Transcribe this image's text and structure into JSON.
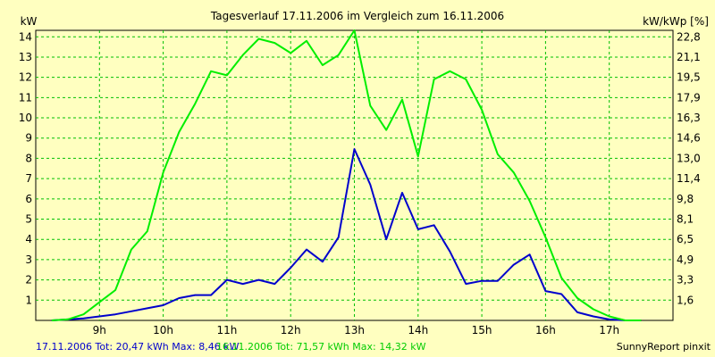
{
  "chart_data": {
    "type": "line",
    "title": "Tagesverlauf 17.11.2006 im Vergleich zum 16.11.2006",
    "ylabel_left": "kW",
    "ylabel_right": "kW/kWp [%]",
    "x_ticks": [
      "9h",
      "10h",
      "11h",
      "12h",
      "13h",
      "14h",
      "15h",
      "16h",
      "17h"
    ],
    "x_tick_values": [
      9,
      10,
      11,
      12,
      13,
      14,
      15,
      16,
      17
    ],
    "xlim": [
      8.0,
      18.0
    ],
    "ylim": [
      0,
      14.32
    ],
    "y_ticks_left": [
      "1",
      "2",
      "3",
      "4",
      "5",
      "6",
      "7",
      "8",
      "9",
      "10",
      "11",
      "12",
      "13",
      "14"
    ],
    "y_ticks_right": [
      "1,6",
      "3,3",
      "4,9",
      "6,5",
      "8,1",
      "9,8",
      "11,4",
      "13,0",
      "14,6",
      "16,3",
      "17,9",
      "19,5",
      "21,1",
      "22,8"
    ],
    "grid": true,
    "series": [
      {
        "name": "17.11.2006",
        "color": "#0000cc",
        "x": [
          8.25,
          8.5,
          8.75,
          9.0,
          9.25,
          9.5,
          9.75,
          10.0,
          10.25,
          10.5,
          10.75,
          11.0,
          11.25,
          11.5,
          11.75,
          12.0,
          12.25,
          12.5,
          12.75,
          13.0,
          13.25,
          13.5,
          13.75,
          14.0,
          14.25,
          14.5,
          14.75,
          15.0,
          15.25,
          15.5,
          15.75,
          16.0,
          16.25,
          16.5,
          16.75,
          17.0,
          17.25,
          17.5
        ],
        "y": [
          0,
          0.05,
          0.1,
          0.2,
          0.3,
          0.45,
          0.6,
          0.75,
          1.1,
          1.25,
          1.25,
          2.0,
          1.8,
          2.0,
          1.8,
          2.6,
          3.5,
          2.9,
          4.1,
          8.46,
          6.7,
          4.0,
          6.3,
          4.5,
          4.7,
          3.4,
          1.8,
          1.95,
          1.95,
          2.75,
          3.25,
          1.45,
          1.3,
          0.4,
          0.2,
          0.05,
          0.0,
          0.0
        ],
        "legend_text": "17.11.2006 Tot: 20,47 kWh Max: 8,46 kW"
      },
      {
        "name": "16.11.2006",
        "color": "#00ee00",
        "x": [
          8.25,
          8.5,
          8.75,
          9.0,
          9.25,
          9.5,
          9.75,
          10.0,
          10.25,
          10.5,
          10.75,
          11.0,
          11.25,
          11.5,
          11.75,
          12.0,
          12.25,
          12.5,
          12.75,
          13.0,
          13.25,
          13.5,
          13.75,
          14.0,
          14.25,
          14.5,
          14.75,
          15.0,
          15.25,
          15.5,
          15.75,
          16.0,
          16.25,
          16.5,
          16.75,
          17.0,
          17.25,
          17.5
        ],
        "y": [
          0,
          0.05,
          0.3,
          0.9,
          1.5,
          3.5,
          4.4,
          7.3,
          9.3,
          10.7,
          12.3,
          12.1,
          13.1,
          13.9,
          13.7,
          13.2,
          13.8,
          12.6,
          13.1,
          14.32,
          10.6,
          9.4,
          10.9,
          8.1,
          11.9,
          12.3,
          11.9,
          10.4,
          8.2,
          7.3,
          5.9,
          4.1,
          2.1,
          1.1,
          0.55,
          0.2,
          0.0,
          0.0
        ],
        "legend_text": "16.11.2006 Tot: 71,57 kWh Max: 14,32 kW"
      }
    ],
    "footer_right": "SunnyReport pinxit"
  }
}
